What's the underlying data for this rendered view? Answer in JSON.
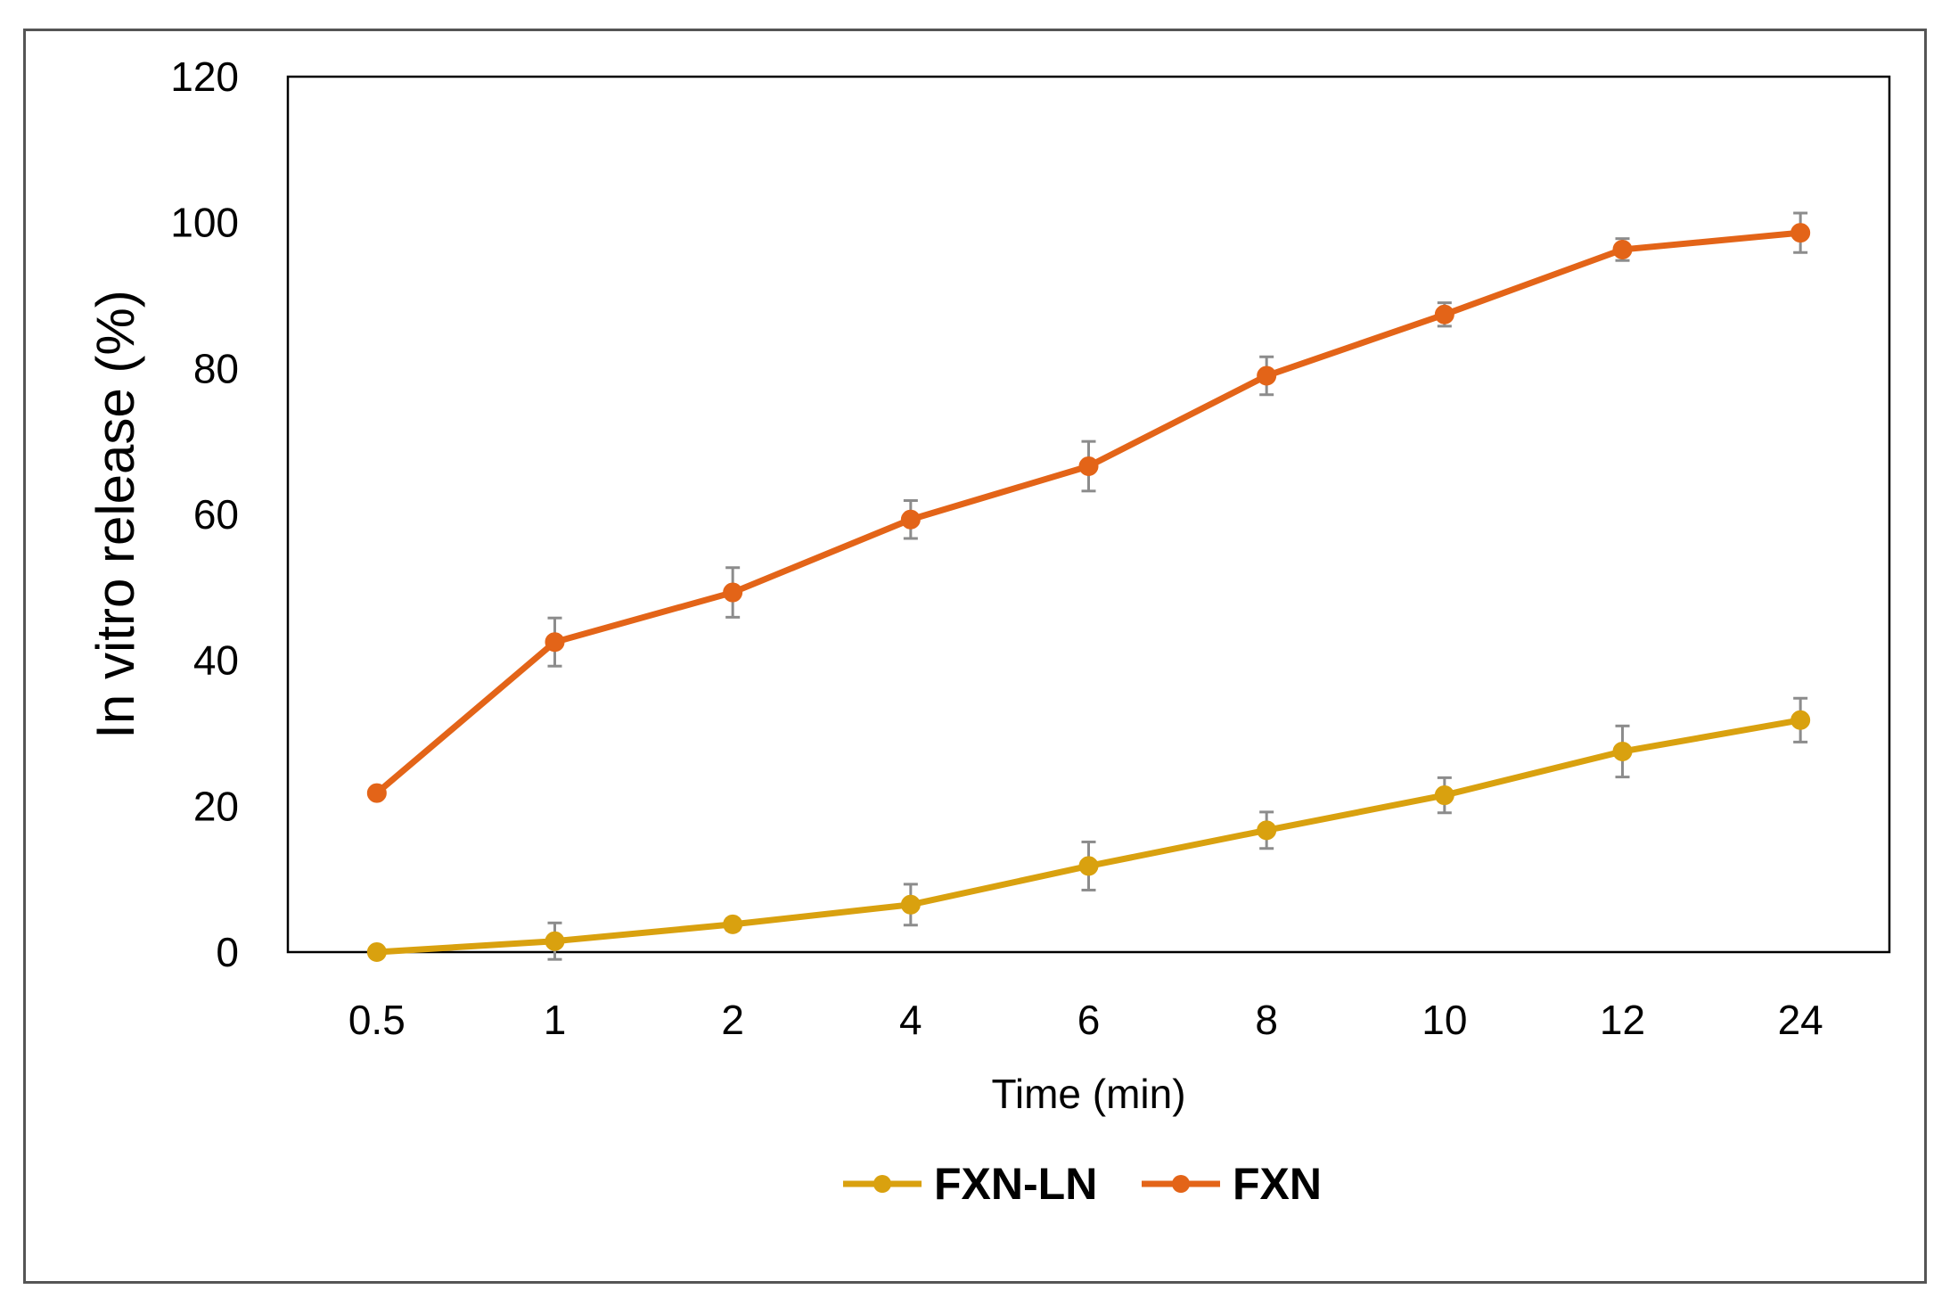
{
  "chart_data": {
    "type": "line",
    "title": "",
    "xlabel": "Time (min)",
    "ylabel": "In vitro release (%)",
    "categories": [
      "0.5",
      "1",
      "2",
      "4",
      "6",
      "8",
      "10",
      "12",
      "24"
    ],
    "yticks": [
      "0",
      "20",
      "40",
      "60",
      "80",
      "100",
      "120"
    ],
    "ylim": [
      0,
      120
    ],
    "grid": false,
    "legend": "bottom",
    "series": [
      {
        "name": "FXN-LN",
        "color": "#D9A10F",
        "values": [
          0,
          1.5,
          3.8,
          6.5,
          11.8,
          16.7,
          21.5,
          27.5,
          31.8
        ],
        "errors": [
          0,
          2.5,
          0.8,
          2.8,
          3.3,
          2.5,
          2.4,
          3.5,
          3.0
        ]
      },
      {
        "name": "FXN",
        "color": "#E36418",
        "values": [
          21.8,
          42.5,
          49.3,
          59.3,
          66.6,
          79.0,
          87.4,
          96.3,
          98.6
        ],
        "errors": [
          0,
          3.3,
          3.4,
          2.6,
          3.4,
          2.6,
          1.6,
          1.5,
          2.7
        ]
      }
    ]
  }
}
